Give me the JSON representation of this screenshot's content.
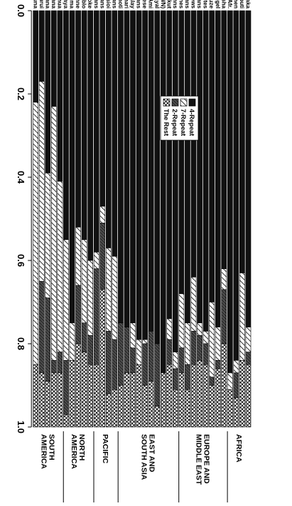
{
  "chart_data": {
    "type": "bar",
    "stacked": true,
    "orientation": "horizontal",
    "xlim": [
      0,
      1
    ],
    "x_ticks": [
      "0.0",
      "0.2",
      "0.4",
      "0.6",
      "0.8",
      "1.0"
    ],
    "grid": false,
    "legend_position": "top-center",
    "colors": {
      "4-Repeat": "#111111",
      "7-Repeat": "#ffffff",
      "2-Repeat": "#555555",
      "The Rest": "#ffffff"
    },
    "patterns": {
      "4-Repeat": "solid",
      "7-Repeat": "diagonal-hatch",
      "2-Repeat": "dark-hatch",
      "The Rest": "cross-hatch"
    },
    "legend": [
      "4-Repeat",
      "7-Repeat",
      "2-Repeat",
      "The Rest"
    ],
    "categories": [
      "Biaka",
      "Mbuti",
      "San Bushmen",
      "Bantu So. Afr.",
      "Falasha",
      "Adygel",
      "Druze",
      "Yemenites",
      "Mixed Europeans",
      "Roman Jews",
      "Sardinians",
      "Danes",
      "Finns",
      "Yakut",
      "Han (SFB, TWN)",
      "Atayal",
      "Ami",
      "Japanese",
      "Cambodians",
      "Malay",
      "Kachari",
      "Thoti",
      "New Guineans",
      "Nasioi",
      "Samoans",
      "Micronesians",
      "Muskoke",
      "Jemez Pueblo",
      "Cheyenne",
      "Pima",
      "Maya",
      "Quechua",
      "Colombiana",
      "Karitiana",
      "Surui",
      "Ticuna"
    ],
    "groups": [
      {
        "label": "AFRICA",
        "count": 4
      },
      {
        "label": "EUROPE AND MIDDLE EAST",
        "count": 8
      },
      {
        "label": "EAST AND SOUTH ASIA",
        "count": 10
      },
      {
        "label": "PACIFIC",
        "count": 4
      },
      {
        "label": "NORTH AMERICA",
        "count": 5
      },
      {
        "label": "SOUTH AMERICA",
        "count": 5
      }
    ],
    "series": [
      {
        "name": "4-Repeat",
        "values": [
          0.76,
          0.63,
          0.84,
          0.87,
          0.62,
          0.76,
          0.7,
          0.77,
          0.75,
          0.64,
          0.75,
          0.68,
          0.82,
          0.74,
          0.87,
          0.8,
          0.77,
          0.79,
          0.79,
          0.75,
          0.76,
          0.75,
          0.59,
          0.57,
          0.47,
          0.58,
          0.6,
          0.55,
          0.52,
          0.75,
          0.55,
          0.41,
          0.23,
          0.39,
          0.17,
          0.22
        ]
      },
      {
        "name": "7-Repeat",
        "values": [
          0.06,
          0.21,
          0.03,
          0.04,
          0.05,
          0.08,
          0.18,
          0.03,
          0.03,
          0.13,
          0.1,
          0.13,
          0.04,
          0.05,
          0.0,
          0.0,
          0.0,
          0.01,
          0.06,
          0.06,
          0.0,
          0.0,
          0.2,
          0.2,
          0.04,
          0.04,
          0.18,
          0.2,
          0.14,
          0.09,
          0.29,
          0.41,
          0.61,
          0.3,
          0.48,
          0.63
        ]
      },
      {
        "name": "2-Repeat",
        "values": [
          0.03,
          0.0,
          0.06,
          0.0,
          0.13,
          0.02,
          0.02,
          0.05,
          0.06,
          0.08,
          0.06,
          0.06,
          0.05,
          0.06,
          0.0,
          0.15,
          0.12,
          0.1,
          0.0,
          0.06,
          0.11,
          0.15,
          0.12,
          0.15,
          0.16,
          0.23,
          0.07,
          0.07,
          0.14,
          0.0,
          0.13,
          0.05,
          0.03,
          0.2,
          0.22,
          0.0
        ]
      },
      {
        "name": "The Rest",
        "values": [
          0.15,
          0.16,
          0.07,
          0.09,
          0.2,
          0.14,
          0.1,
          0.15,
          0.16,
          0.15,
          0.09,
          0.13,
          0.09,
          0.15,
          0.13,
          0.05,
          0.11,
          0.1,
          0.15,
          0.13,
          0.13,
          0.1,
          0.09,
          0.08,
          0.33,
          0.15,
          0.15,
          0.18,
          0.2,
          0.16,
          0.03,
          0.13,
          0.13,
          0.11,
          0.13,
          0.15
        ]
      }
    ]
  }
}
